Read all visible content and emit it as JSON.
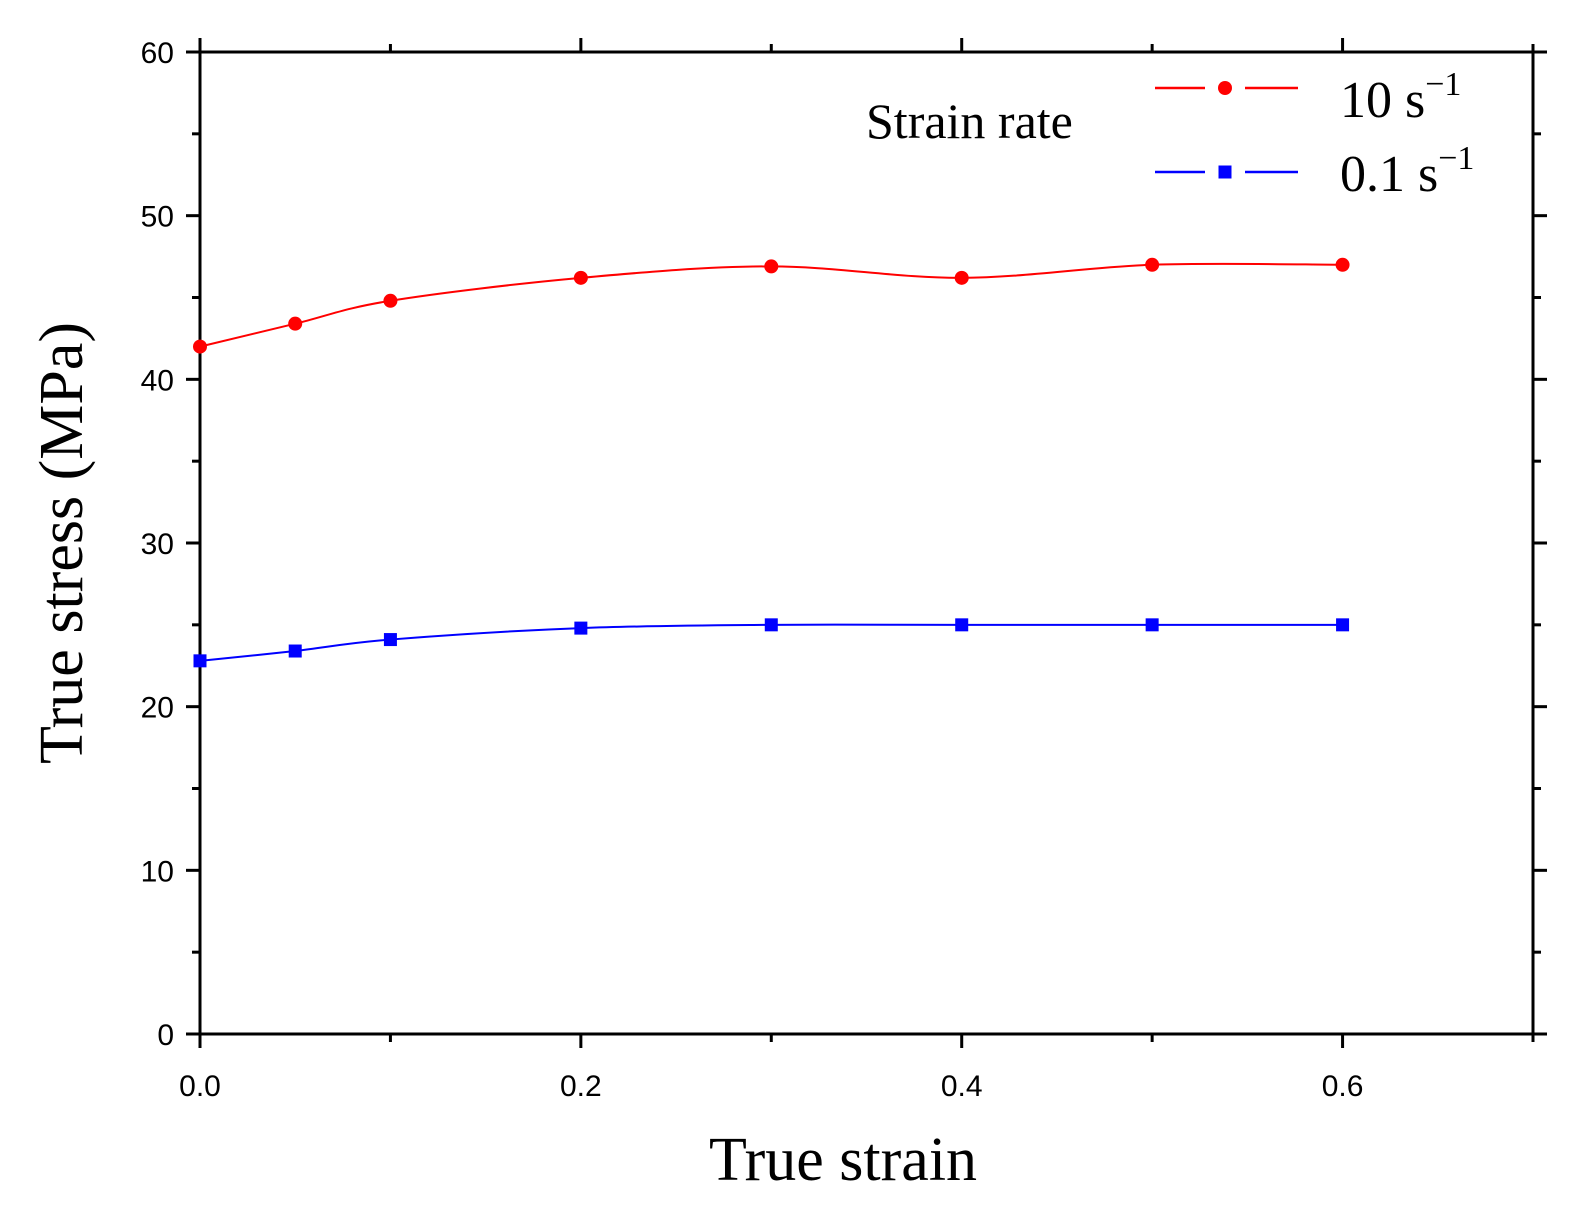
{
  "chart_data": {
    "type": "line",
    "xlabel": "True strain",
    "ylabel": "True stress (MPa)",
    "xlim": [
      0,
      0.7
    ],
    "ylim": [
      0,
      60
    ],
    "xticks": [
      0.0,
      0.2,
      0.4,
      0.6
    ],
    "xtick_labels": [
      "0.0",
      "0.2",
      "0.4",
      "0.6"
    ],
    "yticks": [
      0,
      10,
      20,
      30,
      40,
      50,
      60
    ],
    "ytick_labels": [
      "0",
      "10",
      "20",
      "30",
      "40",
      "50",
      "60"
    ],
    "grid": false,
    "legend": {
      "title": "Strain rate",
      "placement": "top-right"
    },
    "series": [
      {
        "name": "10 s−1",
        "label_main": "10 s",
        "label_sup": "−1",
        "color": "#ff0000",
        "marker": "circle",
        "x": [
          0.0,
          0.05,
          0.1,
          0.2,
          0.3,
          0.4,
          0.5,
          0.6
        ],
        "y": [
          42.0,
          43.4,
          44.8,
          46.2,
          46.9,
          46.2,
          47.0,
          47.0
        ]
      },
      {
        "name": "0.1 s−1",
        "label_main": "0.1 s",
        "label_sup": "−1",
        "color": "#0000ff",
        "marker": "square",
        "x": [
          0.0,
          0.05,
          0.1,
          0.2,
          0.3,
          0.4,
          0.5,
          0.6
        ],
        "y": [
          22.8,
          23.4,
          24.1,
          24.8,
          25.0,
          25.0,
          25.0,
          25.0
        ]
      }
    ]
  }
}
